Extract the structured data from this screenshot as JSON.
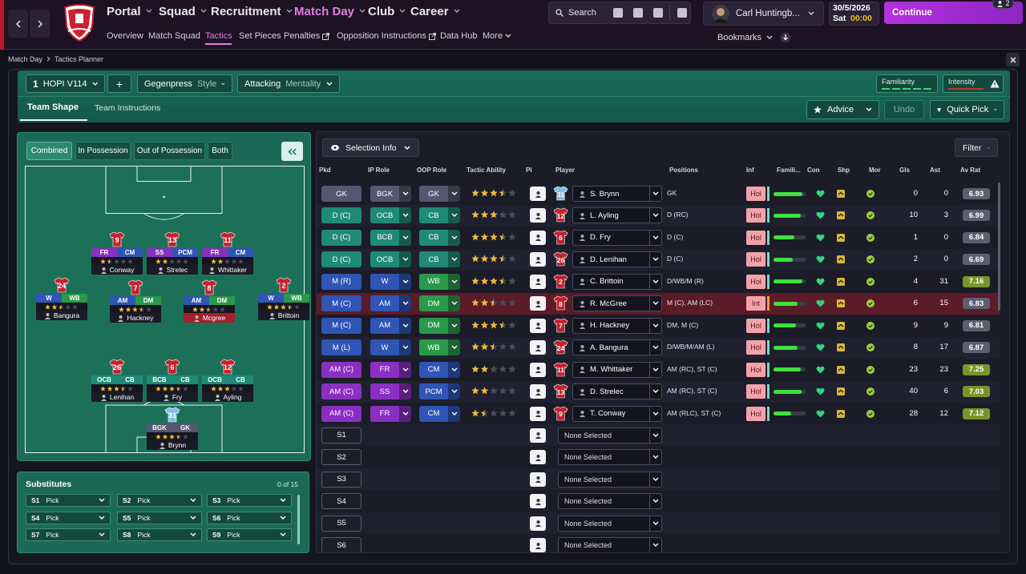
{
  "header": {
    "nav": [
      "Portal",
      "Squad",
      "Recruitment",
      "Match Day",
      "Club",
      "Career"
    ],
    "subnav": [
      "Overview",
      "Match Squad",
      "Tactics",
      "Set Pieces",
      "Penalties",
      "Opposition Instructions",
      "Data Hub",
      "More"
    ],
    "search": "Search",
    "manager": "Carl Huntingb...",
    "date": "30/5/2026",
    "day": "Sat",
    "time": "00:00",
    "continue": "Continue",
    "notifications": "2",
    "bookmarks": "Bookmarks"
  },
  "breadcrumb": [
    "Match Day",
    "Tactics Planner"
  ],
  "toolbar": {
    "slot": "1",
    "tactic": "HOPI V114",
    "add": "+",
    "style": "Gegenpress",
    "style_label": "Style",
    "mentality": "Attacking",
    "mentality_label": "Mentality",
    "familiarity": "Familiarity",
    "intensity": "Intensity",
    "tabs": [
      "Team Shape",
      "Team Instructions"
    ],
    "advice": "Advice",
    "undo": "Undo",
    "quick_pick": "Quick Pick"
  },
  "pitch": {
    "modes": [
      "Combined",
      "In Possession",
      "Out of Possession",
      "Both"
    ],
    "players": [
      {
        "number": "9",
        "ip": "FR",
        "oop": "CM",
        "name": "Conway"
      },
      {
        "number": "13",
        "ip": "SS",
        "oop": "PCM",
        "name": "Strelec"
      },
      {
        "number": "11",
        "ip": "FR",
        "oop": "CM",
        "name": "Whittaker"
      },
      {
        "number": "24",
        "ip": "W",
        "oop": "WB",
        "name": "Bangura"
      },
      {
        "number": "7",
        "ip": "AM",
        "oop": "DM",
        "name": "Hackney"
      },
      {
        "number": "8",
        "ip": "AM",
        "oop": "DM",
        "name": "Mcgree"
      },
      {
        "number": "2",
        "ip": "W",
        "oop": "WB",
        "name": "Brittoin"
      },
      {
        "number": "26",
        "ip": "OCB",
        "oop": "CB",
        "name": "Lenihan"
      },
      {
        "number": "6",
        "ip": "BCB",
        "oop": "CB",
        "name": "Fry"
      },
      {
        "number": "12",
        "ip": "OCB",
        "oop": "CB",
        "name": "Ayling"
      },
      {
        "number": "31",
        "ip": "BGK",
        "oop": "GK",
        "name": "Brynn"
      }
    ]
  },
  "substitutes": {
    "title": "Substitutes",
    "count": "0 of 15",
    "slots": [
      {
        "label": "S1",
        "value": "Pick"
      },
      {
        "label": "S2",
        "value": "Pick"
      },
      {
        "label": "S3",
        "value": "Pick"
      },
      {
        "label": "S4",
        "value": "Pick"
      },
      {
        "label": "S5",
        "value": "Pick"
      },
      {
        "label": "S6",
        "value": "Pick"
      },
      {
        "label": "S7",
        "value": "Pick"
      },
      {
        "label": "S8",
        "value": "Pick"
      },
      {
        "label": "S9",
        "value": "Pick"
      }
    ]
  },
  "table": {
    "selection_info": "Selection Info",
    "filter": "Filter",
    "columns": [
      "Pkd",
      "IP Role",
      "OOP Role",
      "Tactic Ability",
      "PI",
      "Player",
      "Positions",
      "Inf",
      "Famili...",
      "Con",
      "Shp",
      "Mor",
      "Gls",
      "Ast",
      "Av Rat"
    ],
    "rows": [
      {
        "pkd": "GK",
        "pkd_color": "#555771",
        "ip": "BGK",
        "ip_color": "#555771",
        "oop": "GK",
        "oop_color": "#555771",
        "ability": 3.5,
        "number": "31",
        "kit_color": "#7cc0e6",
        "player": "S. Brynn",
        "positions": "GK",
        "inf": "Hol",
        "familiarity": 90,
        "goals": "0",
        "assists": "0",
        "rating": "6.93",
        "rating_color": "#5d5f70"
      },
      {
        "pkd": "D (C)",
        "pkd_color": "#1f8a78",
        "ip": "OCB",
        "ip_color": "#1f8a78",
        "oop": "CB",
        "oop_color": "#1f8a78",
        "ability": 3,
        "number": "12",
        "kit_color": "#c8202c",
        "player": "L. Ayling",
        "positions": "D (RC)",
        "inf": "Hol",
        "familiarity": 85,
        "goals": "10",
        "assists": "3",
        "rating": "6.99",
        "rating_color": "#5d5f70"
      },
      {
        "pkd": "D (C)",
        "pkd_color": "#1f8a78",
        "ip": "BCB",
        "ip_color": "#1f8a78",
        "oop": "CB",
        "oop_color": "#1f8a78",
        "ability": 3.5,
        "number": "6",
        "kit_color": "#c8202c",
        "player": "D. Fry",
        "positions": "D (C)",
        "inf": "Hol",
        "familiarity": 65,
        "goals": "1",
        "assists": "0",
        "rating": "6.84",
        "rating_color": "#5d5f70"
      },
      {
        "pkd": "D (C)",
        "pkd_color": "#1f8a78",
        "ip": "OCB",
        "ip_color": "#1f8a78",
        "oop": "CB",
        "oop_color": "#1f8a78",
        "ability": 3.5,
        "number": "26",
        "kit_color": "#c8202c",
        "player": "D. Lenihan",
        "positions": "D (C)",
        "inf": "Hol",
        "familiarity": 60,
        "goals": "2",
        "assists": "0",
        "rating": "6.69",
        "rating_color": "#5d5f70"
      },
      {
        "pkd": "M (R)",
        "pkd_color": "#2f55b5",
        "ip": "W",
        "ip_color": "#2f55b5",
        "oop": "WB",
        "oop_color": "#2a9a4a",
        "ability": 3.5,
        "number": "2",
        "kit_color": "#c8202c",
        "player": "C. Brittoin",
        "positions": "D/WB/M (R)",
        "inf": "Hol",
        "familiarity": 90,
        "goals": "4",
        "assists": "31",
        "rating": "7.16",
        "rating_color": "#77962a"
      },
      {
        "pkd": "M (C)",
        "pkd_color": "#2f55b5",
        "ip": "AM",
        "ip_color": "#2f55b5",
        "oop": "DM",
        "oop_color": "#2a9a4a",
        "ability": 2.5,
        "number": "8",
        "kit_color": "#c8202c",
        "player": "R. McGree",
        "positions": "M (C), AM (LC)",
        "inf": "Int",
        "familiarity": 75,
        "goals": "6",
        "assists": "15",
        "rating": "6.83",
        "rating_color": "#5d5f70",
        "selected": true
      },
      {
        "pkd": "M (C)",
        "pkd_color": "#2f55b5",
        "ip": "AM",
        "ip_color": "#2f55b5",
        "oop": "DM",
        "oop_color": "#2a9a4a",
        "ability": 3.5,
        "number": "7",
        "kit_color": "#c8202c",
        "player": "H. Hackney",
        "positions": "DM, M (C)",
        "inf": "Hol",
        "familiarity": 70,
        "goals": "9",
        "assists": "9",
        "rating": "6.81",
        "rating_color": "#5d5f70"
      },
      {
        "pkd": "M (L)",
        "pkd_color": "#2f55b5",
        "ip": "W",
        "ip_color": "#2f55b5",
        "oop": "WB",
        "oop_color": "#2a9a4a",
        "ability": 2.5,
        "number": "24",
        "kit_color": "#c8202c",
        "player": "A. Bangura",
        "positions": "D/WB/M/AM (L)",
        "inf": "Hol",
        "familiarity": 75,
        "goals": "8",
        "assists": "17",
        "rating": "6.87",
        "rating_color": "#5d5f70"
      },
      {
        "pkd": "AM (C)",
        "pkd_color": "#8a2fc0",
        "ip": "FR",
        "ip_color": "#8a2fc0",
        "oop": "CM",
        "oop_color": "#2f55b5",
        "ability": 2,
        "number": "11",
        "kit_color": "#c8202c",
        "player": "M. Whittaker",
        "positions": "AM (RC), ST (C)",
        "inf": "Hol",
        "familiarity": 85,
        "goals": "23",
        "assists": "23",
        "rating": "7.25",
        "rating_color": "#77962a"
      },
      {
        "pkd": "AM (C)",
        "pkd_color": "#8a2fc0",
        "ip": "SS",
        "ip_color": "#8a2fc0",
        "oop": "PCM",
        "oop_color": "#2f55b5",
        "ability": 2,
        "number": "13",
        "kit_color": "#c8202c",
        "player": "D. Strelec",
        "positions": "AM (RC), ST (C)",
        "inf": "Hol",
        "familiarity": 88,
        "goals": "40",
        "assists": "6",
        "rating": "7.03",
        "rating_color": "#77962a"
      },
      {
        "pkd": "AM (C)",
        "pkd_color": "#8a2fc0",
        "ip": "FR",
        "ip_color": "#8a2fc0",
        "oop": "CM",
        "oop_color": "#2f55b5",
        "ability": 1.5,
        "number": "9",
        "kit_color": "#c8202c",
        "player": "T. Conway",
        "positions": "AM (RLC), ST (C)",
        "inf": "Hol",
        "familiarity": 55,
        "goals": "28",
        "assists": "12",
        "rating": "7.12",
        "rating_color": "#77962a"
      }
    ],
    "empty_rows": [
      {
        "pkd": "S1",
        "player": "None Selected"
      },
      {
        "pkd": "S2",
        "player": "None Selected"
      },
      {
        "pkd": "S3",
        "player": "None Selected"
      },
      {
        "pkd": "S4",
        "player": "None Selected"
      },
      {
        "pkd": "S5",
        "player": "None Selected"
      },
      {
        "pkd": "S6",
        "player": "None Selected"
      }
    ]
  }
}
